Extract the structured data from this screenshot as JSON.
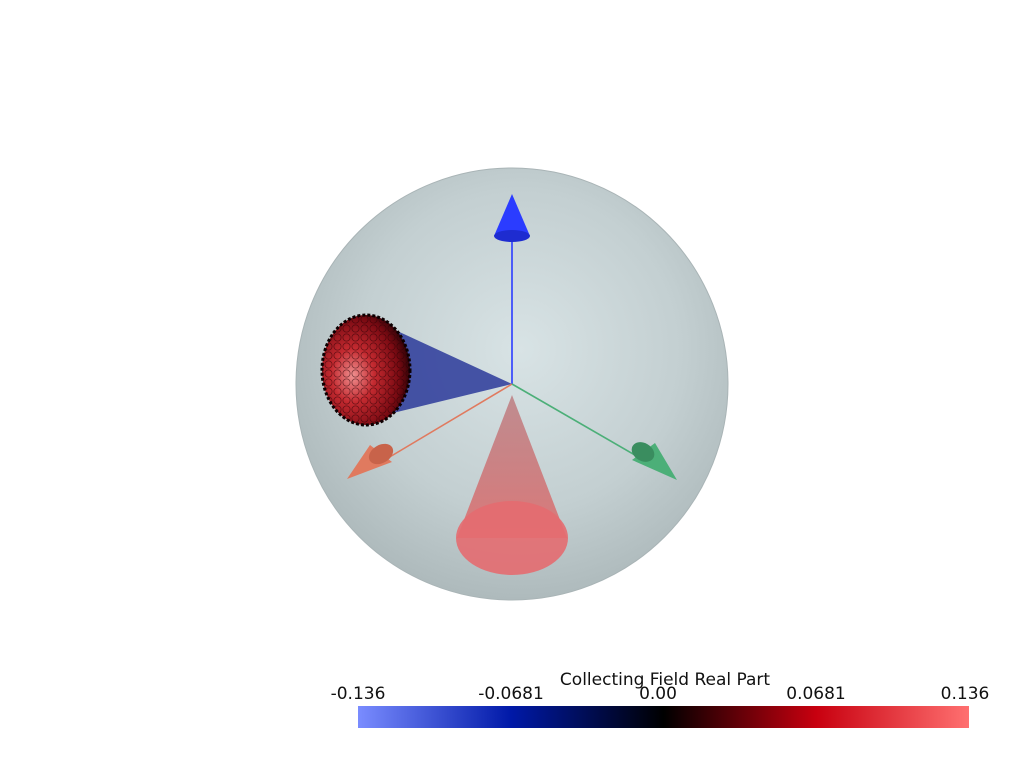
{
  "scene": {
    "sphere_color": "#b7c4c6",
    "axis_colors": {
      "x": "#e07a5f",
      "y": "#4caf78",
      "z": "#2b3cff"
    },
    "collecting_cone_color": "#2b3a9a",
    "illumination_cone_color": "#e06a6a",
    "detector_patch_color": "#8b0a14"
  },
  "colorbar": {
    "title": "Collecting Field Real Part",
    "ticks": [
      "-0.136",
      "-0.0681",
      "0.00",
      "0.0681",
      "0.136"
    ],
    "range": [
      -0.136,
      0.136
    ],
    "colormap": [
      "#7a8cff",
      "#0019a8",
      "#000000",
      "#c8000f",
      "#ff7070"
    ]
  }
}
